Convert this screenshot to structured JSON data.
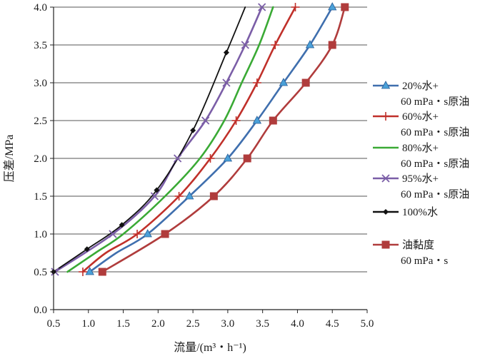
{
  "chart_data": {
    "type": "line",
    "title": "",
    "xlabel": "流量/(m³・h⁻¹)",
    "ylabel": "压差/MPa",
    "xlim": [
      0.5,
      5.0
    ],
    "ylim": [
      0.0,
      4.0
    ],
    "x_ticks": [
      "0.5",
      "1.0",
      "1.5",
      "2.0",
      "2.5",
      "3.0",
      "3.5",
      "4.0",
      "4.5",
      "5.0"
    ],
    "y_ticks": [
      "0.0",
      "0.5",
      "1.0",
      "1.5",
      "2.0",
      "2.5",
      "3.0",
      "3.5",
      "4.0"
    ],
    "grid": "horizontal",
    "legend_position": "right",
    "series": [
      {
        "name": "20%水+ 60 mPa・s原油",
        "label_lines": [
          "20%水+",
          "60 mPa・s原油"
        ],
        "color": "#3f6fae",
        "marker": "triangle",
        "marker_color": "#4aa0d8",
        "marker_x": [
          1.02,
          1.85,
          2.45,
          3.0,
          3.42,
          3.8,
          4.18,
          4.5
        ],
        "marker_y": [
          0.5,
          1.0,
          1.5,
          2.0,
          2.5,
          3.0,
          3.5,
          4.0
        ],
        "x": [
          1.02,
          1.4,
          1.85,
          2.45,
          3.0,
          3.42,
          3.8,
          4.18,
          4.5
        ],
        "y": [
          0.5,
          0.75,
          1.0,
          1.5,
          2.0,
          2.5,
          3.0,
          3.5,
          4.0
        ]
      },
      {
        "name": "60%水+ 60 mPa・s原油",
        "label_lines": [
          "60%水+",
          "60 mPa・s原油"
        ],
        "color": "#c0302a",
        "marker": "plus",
        "marker_color": "#c0302a",
        "marker_x": [
          0.92,
          1.7,
          2.3,
          2.75,
          3.12,
          3.42,
          3.68,
          3.97
        ],
        "marker_y": [
          0.5,
          1.0,
          1.5,
          2.0,
          2.5,
          3.0,
          3.5,
          4.0
        ],
        "x": [
          0.92,
          1.25,
          1.7,
          2.3,
          2.75,
          3.12,
          3.42,
          3.68,
          3.97
        ],
        "y": [
          0.5,
          0.75,
          1.0,
          1.5,
          2.0,
          2.5,
          3.0,
          3.5,
          4.0
        ]
      },
      {
        "name": "80%水+ 60 mPa・s原油",
        "label_lines": [
          "80%水+",
          "60 mPa・s原油"
        ],
        "color": "#3aaa35",
        "marker": "none",
        "marker_color": "#3aaa35",
        "marker_x": [],
        "marker_y": [],
        "x": [
          0.7,
          1.1,
          1.5,
          2.1,
          2.6,
          2.95,
          3.2,
          3.45,
          3.65
        ],
        "y": [
          0.5,
          0.75,
          1.0,
          1.5,
          2.0,
          2.5,
          3.0,
          3.5,
          4.0
        ]
      },
      {
        "name": "95%水+ 60 mPa・s原油",
        "label_lines": [
          "95%水+",
          "60 mPa・s原油"
        ],
        "color": "#7b5ea7",
        "marker": "x",
        "marker_color": "#7b5ea7",
        "marker_x": [
          0.52,
          1.35,
          1.95,
          2.28,
          2.68,
          2.98,
          3.25,
          3.49
        ],
        "marker_y": [
          0.5,
          1.0,
          1.5,
          2.0,
          2.5,
          3.0,
          3.5,
          4.0
        ],
        "x": [
          0.52,
          1.35,
          1.95,
          2.28,
          2.68,
          2.98,
          3.25,
          3.49
        ],
        "y": [
          0.5,
          1.0,
          1.5,
          2.0,
          2.5,
          3.0,
          3.5,
          4.0
        ]
      },
      {
        "name": "100%水",
        "label_lines": [
          "100%水"
        ],
        "color": "#111111",
        "marker": "diamond",
        "marker_color": "#111111",
        "marker_x": [
          0.5,
          0.98,
          1.48,
          1.98,
          2.5,
          2.98
        ],
        "marker_y": [
          0.5,
          0.8,
          1.12,
          1.58,
          2.37,
          3.4
        ],
        "x": [
          0.5,
          0.98,
          1.48,
          1.98,
          2.5,
          2.98,
          3.25
        ],
        "y": [
          0.5,
          0.8,
          1.12,
          1.58,
          2.37,
          3.4,
          4.0
        ]
      },
      {
        "name": "油黏度 60 mPa・s",
        "label_lines": [
          "油黏度",
          "60 mPa・s"
        ],
        "color": "#b03c3c",
        "marker": "square",
        "marker_color": "#b03c3c",
        "marker_x": [
          1.2,
          2.1,
          2.8,
          3.28,
          3.65,
          4.12,
          4.5,
          4.68
        ],
        "marker_y": [
          0.5,
          1.0,
          1.5,
          2.0,
          2.5,
          3.0,
          3.5,
          4.0
        ],
        "x": [
          1.2,
          2.1,
          2.8,
          3.28,
          3.65,
          4.12,
          4.5,
          4.68
        ],
        "y": [
          0.5,
          1.0,
          1.5,
          2.0,
          2.5,
          3.0,
          3.5,
          4.0
        ]
      }
    ]
  }
}
